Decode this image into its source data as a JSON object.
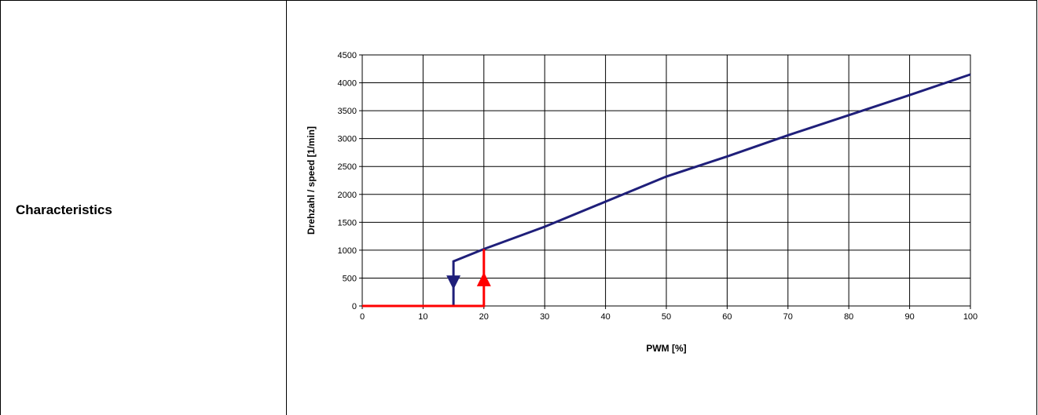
{
  "row": {
    "label": "Characteristics"
  },
  "chart_data": {
    "type": "line",
    "xlabel": "PWM [%]",
    "ylabel": "Drehzahl / speed [1/min]",
    "xlim": [
      0,
      100
    ],
    "ylim": [
      0,
      4500
    ],
    "xticks": [
      "0",
      "10",
      "20",
      "30",
      "40",
      "50",
      "60",
      "70",
      "80",
      "90",
      "100"
    ],
    "yticks": [
      "0",
      "500",
      "1000",
      "1500",
      "2000",
      "2500",
      "3000",
      "3500",
      "4000",
      "4500"
    ],
    "grid": true,
    "series": [
      {
        "color": "#1f1f7a",
        "points": [
          [
            15,
            0
          ],
          [
            15,
            800
          ],
          [
            20,
            1020
          ],
          [
            30,
            1420
          ],
          [
            40,
            1870
          ],
          [
            50,
            2320
          ],
          [
            60,
            2680
          ],
          [
            70,
            3060
          ],
          [
            80,
            3420
          ],
          [
            90,
            3780
          ],
          [
            100,
            4150
          ]
        ]
      },
      {
        "color": "#ff0000",
        "points": [
          [
            0,
            0
          ],
          [
            20,
            0
          ],
          [
            20,
            1020
          ]
        ]
      }
    ],
    "markers": [
      {
        "shape": "triangle-down",
        "x": 15,
        "y": 420,
        "color": "#1f1f7a"
      },
      {
        "shape": "triangle-up",
        "x": 20,
        "y": 480,
        "color": "#ff0000"
      }
    ]
  }
}
